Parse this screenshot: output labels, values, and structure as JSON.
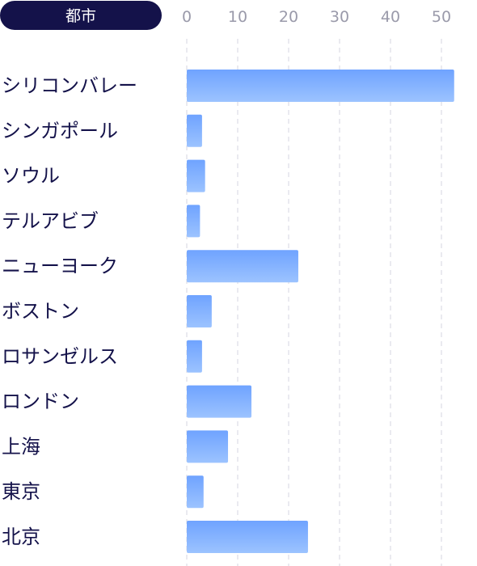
{
  "chart_data": {
    "type": "bar",
    "orientation": "horizontal",
    "category_header": "都市",
    "categories": [
      "シリコンバレー",
      "シンガポール",
      "ソウル",
      "テルアビブ",
      "ニューヨーク",
      "ボストン",
      "ロサンゼルス",
      "ロンドン",
      "上海",
      "東京",
      "北京"
    ],
    "values": [
      52.5,
      3,
      3.6,
      2.6,
      21.9,
      4.9,
      3,
      12.7,
      8.1,
      3.3,
      23.8
    ],
    "xlim": [
      0,
      55
    ],
    "ticks": [
      0,
      10,
      20,
      30,
      40,
      50
    ],
    "tick_labels": [
      "0",
      "10",
      "20",
      "30",
      "40",
      "50"
    ],
    "grid": "vertical dashed",
    "legend": "none",
    "colors": {
      "bar_top": "#6fa3ff",
      "bar_bottom": "#9cc3ff",
      "header_bg": "#14124a",
      "header_text": "#ffffff",
      "label_text": "#14124a",
      "tick_text": "#9a9aaa",
      "grid": "#d4d6e2"
    }
  }
}
